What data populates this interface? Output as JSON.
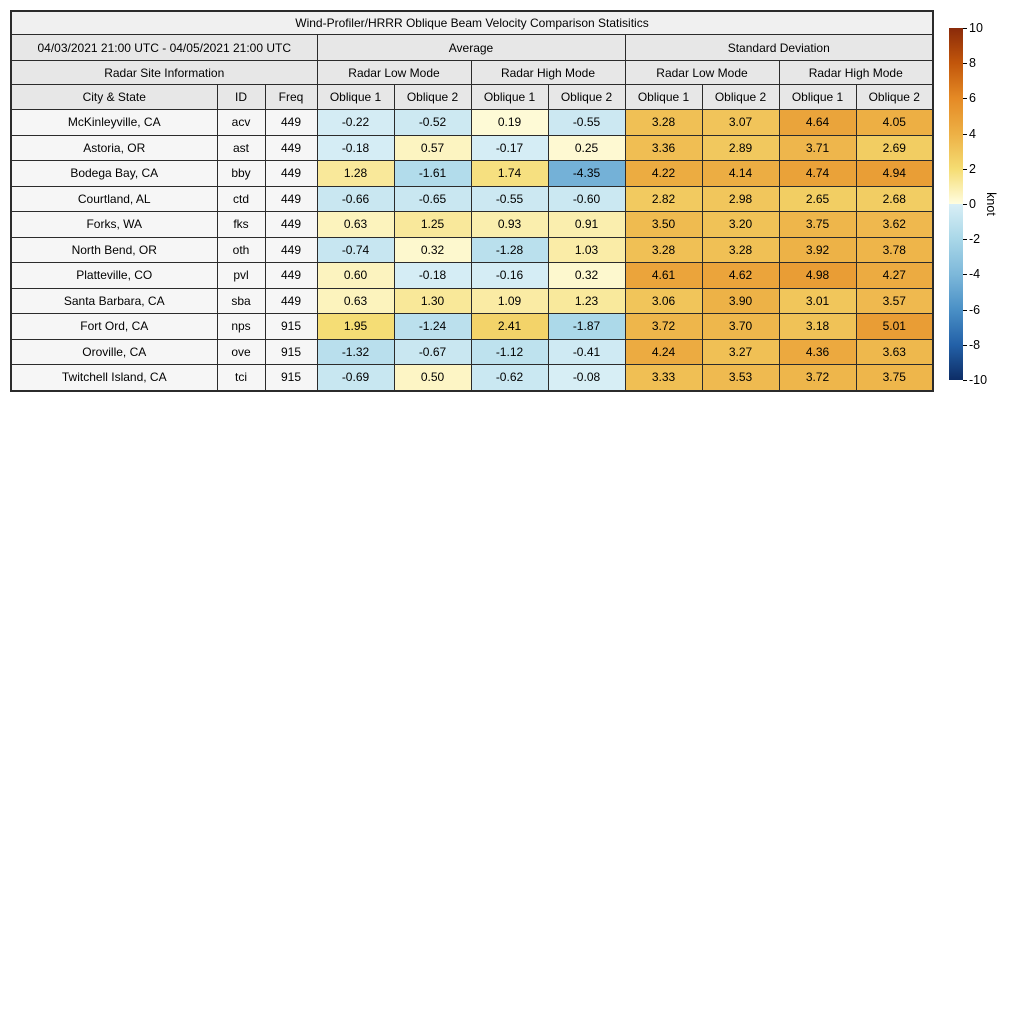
{
  "title": "Wind-Profiler/HRRR Oblique Beam Velocity Comparison Statisitics",
  "table": {
    "date_range": "04/03/2021 21:00 UTC - 04/05/2021 21:00 UTC",
    "site_info_header": "Radar Site Information",
    "group_average": "Average",
    "group_std": "Standard Deviation",
    "mode_low": "Radar Low Mode",
    "mode_high": "Radar High Mode",
    "col_city": "City & State",
    "col_id": "ID",
    "col_freq": "Freq",
    "col_oblique1": "Oblique 1",
    "col_oblique2": "Oblique 2"
  },
  "colorbar": {
    "label": "knot",
    "min": -10,
    "max": 10,
    "ticks": [
      10,
      8,
      6,
      4,
      2,
      0,
      -2,
      -4,
      -6,
      -8,
      -10
    ],
    "gradient_stops": [
      [
        -10,
        "#0d2d66"
      ],
      [
        -8,
        "#2361a8"
      ],
      [
        -6,
        "#4a90c6"
      ],
      [
        -4,
        "#7db8da"
      ],
      [
        -2,
        "#a9d7e8"
      ],
      [
        -0.0001,
        "#d9eff6"
      ],
      [
        0.0001,
        "#fffde0"
      ],
      [
        2,
        "#f5dc72"
      ],
      [
        4,
        "#edb045"
      ],
      [
        6,
        "#e58a25"
      ],
      [
        8,
        "#c2560b"
      ],
      [
        10,
        "#8a2a0a"
      ]
    ]
  },
  "chart_data": {
    "type": "heatmap",
    "title": "Wind-Profiler/HRRR Oblique Beam Velocity Comparison Statisitics",
    "unit": "knot",
    "value_range": [
      -10,
      10
    ],
    "columns": [
      "Average Radar Low Mode Oblique 1",
      "Average Radar Low Mode Oblique 2",
      "Average Radar High Mode Oblique 1",
      "Average Radar High Mode Oblique 2",
      "Std Dev Radar Low Mode Oblique 1",
      "Std Dev Radar Low Mode Oblique 2",
      "Std Dev Radar High Mode Oblique 1",
      "Std Dev Radar High Mode Oblique 2"
    ],
    "rows": [
      {
        "city": "McKinleyville, CA",
        "id": "acv",
        "freq": "449",
        "values": [
          -0.22,
          -0.52,
          0.19,
          -0.55,
          3.28,
          3.07,
          4.64,
          4.05
        ]
      },
      {
        "city": "Astoria, OR",
        "id": "ast",
        "freq": "449",
        "values": [
          -0.18,
          0.57,
          -0.17,
          0.25,
          3.36,
          2.89,
          3.71,
          2.69
        ]
      },
      {
        "city": "Bodega Bay, CA",
        "id": "bby",
        "freq": "449",
        "values": [
          1.28,
          -1.61,
          1.74,
          -4.35,
          4.22,
          4.14,
          4.74,
          4.94
        ]
      },
      {
        "city": "Courtland, AL",
        "id": "ctd",
        "freq": "449",
        "values": [
          -0.66,
          -0.65,
          -0.55,
          -0.6,
          2.82,
          2.98,
          2.65,
          2.68
        ]
      },
      {
        "city": "Forks, WA",
        "id": "fks",
        "freq": "449",
        "values": [
          0.63,
          1.25,
          0.93,
          0.91,
          3.5,
          3.2,
          3.75,
          3.62
        ]
      },
      {
        "city": "North Bend, OR",
        "id": "oth",
        "freq": "449",
        "values": [
          -0.74,
          0.32,
          -1.28,
          1.03,
          3.28,
          3.28,
          3.92,
          3.78
        ]
      },
      {
        "city": "Platteville, CO",
        "id": "pvl",
        "freq": "449",
        "values": [
          0.6,
          -0.18,
          -0.16,
          0.32,
          4.61,
          4.62,
          4.98,
          4.27
        ]
      },
      {
        "city": "Santa Barbara, CA",
        "id": "sba",
        "freq": "449",
        "values": [
          0.63,
          1.3,
          1.09,
          1.23,
          3.06,
          3.9,
          3.01,
          3.57
        ]
      },
      {
        "city": "Fort Ord, CA",
        "id": "nps",
        "freq": "915",
        "values": [
          1.95,
          -1.24,
          2.41,
          -1.87,
          3.72,
          3.7,
          3.18,
          5.01
        ]
      },
      {
        "city": "Oroville, CA",
        "id": "ove",
        "freq": "915",
        "values": [
          -1.32,
          -0.67,
          -1.12,
          -0.41,
          4.24,
          3.27,
          4.36,
          3.63
        ]
      },
      {
        "city": "Twitchell Island, CA",
        "id": "tci",
        "freq": "915",
        "values": [
          -0.69,
          0.5,
          -0.62,
          -0.08,
          3.33,
          3.53,
          3.72,
          3.75
        ]
      }
    ]
  }
}
